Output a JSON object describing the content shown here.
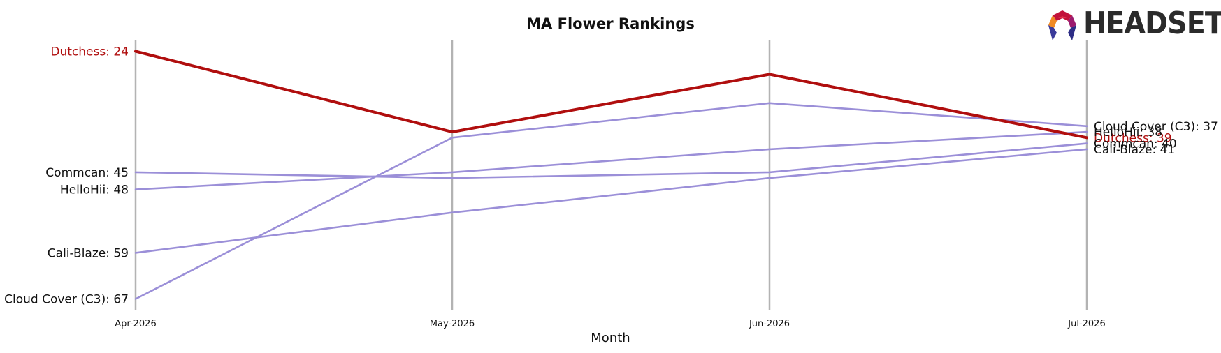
{
  "chart_data": {
    "type": "line",
    "title": "MA Flower Rankings",
    "xlabel": "Month",
    "ylabel": "",
    "x": [
      "Apr-2026",
      "May-2026",
      "Jun-2026",
      "Jul-2026"
    ],
    "y_inverted": true,
    "ylim": [
      22,
      69
    ],
    "grid": "vertical month lines only",
    "highlight_color": "#b00e0e",
    "other_color": "#9b8fd8",
    "series": [
      {
        "name": "Dutchess",
        "values": [
          24,
          38,
          28,
          39
        ],
        "highlight": true,
        "start_label": "Dutchess: 24",
        "end_label": "Dutchess: 39"
      },
      {
        "name": "Cloud Cover (C3)",
        "values": [
          67,
          39,
          33,
          37
        ],
        "highlight": false,
        "start_label": "Cloud Cover (C3): 67",
        "end_label": "Cloud Cover (C3): 37"
      },
      {
        "name": "HelloHii",
        "values": [
          48,
          45,
          41,
          38
        ],
        "highlight": false,
        "start_label": "HelloHii: 48",
        "end_label": "HelloHii: 38"
      },
      {
        "name": "Commcan",
        "values": [
          45,
          46,
          45,
          40
        ],
        "highlight": false,
        "start_label": "Commcan: 45",
        "end_label": "Commcan: 40"
      },
      {
        "name": "Cali-Blaze",
        "values": [
          59,
          52,
          46,
          41
        ],
        "highlight": false,
        "start_label": "Cali-Blaze: 59",
        "end_label": "Cali-Blaze: 41"
      }
    ]
  },
  "logo": {
    "text": "HEADSET",
    "icon": "headset-hexagon-logo-icon"
  }
}
